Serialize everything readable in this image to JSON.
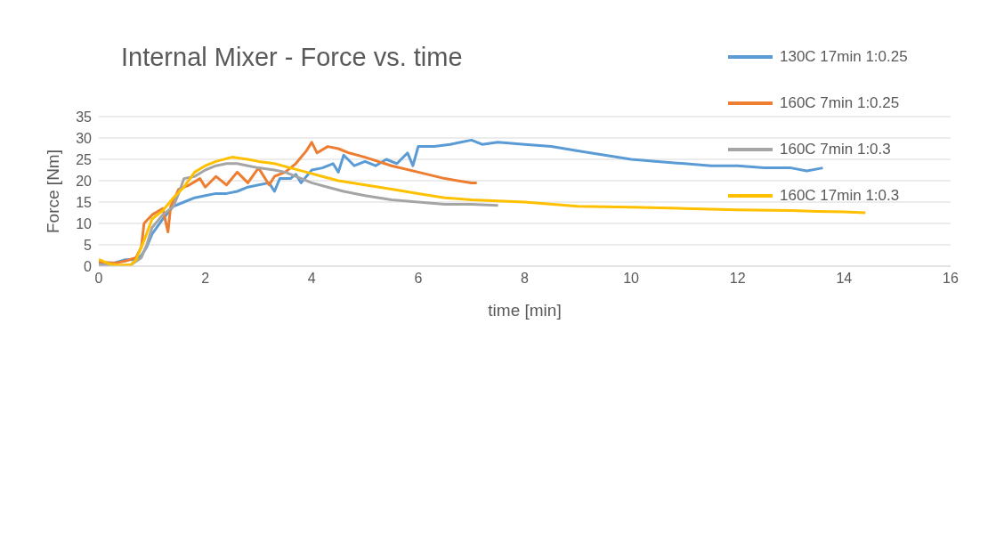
{
  "chart_data": {
    "type": "line",
    "title": "Internal Mixer - Force vs. time",
    "xlabel": "time [min]",
    "ylabel": "Force [Nm]",
    "xlim": [
      0,
      16
    ],
    "xticks": [
      0,
      2,
      4,
      6,
      8,
      10,
      12,
      14,
      16
    ],
    "ylim": [
      0,
      35
    ],
    "yticks": [
      0,
      5,
      10,
      15,
      20,
      25,
      30,
      35
    ],
    "grid": "y",
    "legend": "top right",
    "marker": "none",
    "line_style": "solid",
    "series": [
      {
        "name": "130C 17min 1:0.25",
        "color": "#5b9bd5",
        "x": [
          0,
          0.3,
          0.5,
          0.7,
          0.8,
          0.9,
          1.0,
          1.2,
          1.4,
          1.6,
          1.8,
          2.0,
          2.2,
          2.4,
          2.6,
          2.8,
          3.0,
          3.2,
          3.3,
          3.4,
          3.6,
          3.7,
          3.8,
          4.0,
          4.2,
          4.4,
          4.5,
          4.6,
          4.8,
          5.0,
          5.2,
          5.4,
          5.6,
          5.8,
          5.9,
          6.0,
          6.3,
          6.6,
          6.8,
          7.0,
          7.2,
          7.5,
          8.0,
          8.5,
          9.0,
          9.5,
          10,
          10.5,
          11,
          11.5,
          12,
          12.5,
          13,
          13.3,
          13.6
        ],
        "values": [
          0.8,
          0.8,
          1.5,
          1.5,
          2.5,
          4.5,
          7.5,
          11,
          14,
          15,
          16,
          16.5,
          17,
          17,
          17.5,
          18.5,
          19,
          19.5,
          17.5,
          20.5,
          20.5,
          21.5,
          19.5,
          22.5,
          23,
          24,
          22,
          26,
          23.5,
          24.5,
          23.5,
          25,
          24,
          26.5,
          23.5,
          28,
          28,
          28.5,
          29,
          29.5,
          28.5,
          29,
          28.5,
          28,
          27,
          26,
          25,
          24.5,
          24,
          23.5,
          23.5,
          23,
          23,
          22.3,
          23
        ]
      },
      {
        "name": "160C 7min 1:0.25",
        "color": "#ed7d31",
        "x": [
          0,
          0.3,
          0.5,
          0.7,
          0.8,
          0.85,
          1.0,
          1.2,
          1.3,
          1.35,
          1.5,
          1.7,
          1.9,
          2.0,
          2.2,
          2.4,
          2.6,
          2.8,
          3.0,
          3.2,
          3.3,
          3.5,
          3.7,
          3.9,
          4.0,
          4.1,
          4.3,
          4.5,
          4.7,
          5.0,
          5.5,
          6.0,
          6.5,
          7.0,
          7.1
        ],
        "values": [
          1,
          0.7,
          1.2,
          2,
          4.5,
          10,
          12,
          13.5,
          8,
          14,
          18,
          19,
          20.5,
          18.5,
          21,
          19,
          22,
          19.5,
          23,
          19,
          21,
          22,
          24,
          27,
          29,
          26.5,
          28,
          27.5,
          26.5,
          25.5,
          23.5,
          22,
          20.5,
          19.5,
          19.5
        ]
      },
      {
        "name": "160C 7min 1:0.3",
        "color": "#a5a5a5",
        "x": [
          0,
          0.3,
          0.6,
          0.8,
          0.9,
          1.0,
          1.2,
          1.4,
          1.5,
          1.6,
          1.8,
          2.0,
          2.2,
          2.4,
          2.6,
          2.8,
          3.0,
          3.3,
          3.5,
          3.7,
          4.0,
          4.3,
          4.6,
          5.0,
          5.5,
          6.0,
          6.5,
          7.0,
          7.5
        ],
        "values": [
          0.2,
          0,
          0.3,
          2,
          5,
          9,
          12,
          14,
          17,
          20.5,
          21,
          22.5,
          23.5,
          24,
          24,
          23.5,
          23,
          22.5,
          22,
          21,
          19.5,
          18.5,
          17.5,
          16.5,
          15.5,
          15,
          14.5,
          14.5,
          14.2
        ]
      },
      {
        "name": "160C 17min 1:0.3",
        "color": "#ffc000",
        "x": [
          0,
          0.2,
          0.4,
          0.6,
          0.7,
          0.85,
          1.0,
          1.2,
          1.4,
          1.6,
          1.8,
          2.0,
          2.2,
          2.5,
          2.8,
          3.0,
          3.3,
          3.6,
          3.9,
          4.2,
          4.5,
          5.0,
          5.5,
          6.0,
          6.5,
          7.0,
          8.0,
          9.0,
          10,
          11,
          12,
          13,
          13.5,
          14,
          14.4
        ],
        "values": [
          1.6,
          0.5,
          0.2,
          0.3,
          1.5,
          6,
          11,
          13,
          16,
          18.5,
          22,
          23.5,
          24.5,
          25.5,
          25,
          24.5,
          24,
          23,
          22,
          21,
          20,
          19,
          18,
          17,
          16,
          15.5,
          15,
          14,
          13.8,
          13.5,
          13.2,
          13,
          12.8,
          12.7,
          12.5
        ]
      }
    ]
  }
}
